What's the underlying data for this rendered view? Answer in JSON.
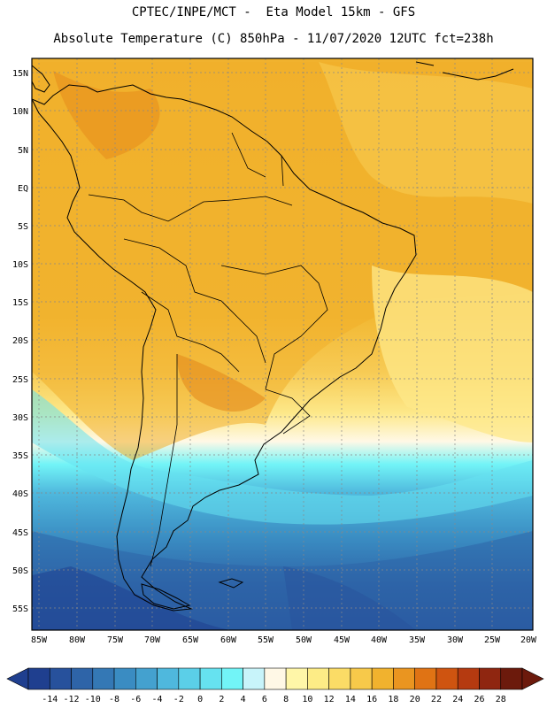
{
  "title_line1": "CPTEC/INPE/MCT -  Eta Model 15km - GFS",
  "title_line2": "Absolute Temperature (C) 850hPa - 11/07/2020 12UTC fct=238h",
  "lat_labels": [
    "15N",
    "10N",
    "5N",
    "EQ",
    "5S",
    "10S",
    "15S",
    "20S",
    "25S",
    "30S",
    "35S",
    "40S",
    "45S",
    "50S",
    "55S"
  ],
  "lon_labels": [
    "85W",
    "80W",
    "75W",
    "70W",
    "65W",
    "60W",
    "55W",
    "50W",
    "45W",
    "40W",
    "35W",
    "30W",
    "25W",
    "20W"
  ],
  "colorbar": {
    "labels": [
      "-14",
      "-12",
      "-10",
      "-8",
      "-6",
      "-4",
      "-2",
      "0",
      "2",
      "4",
      "6",
      "8",
      "10",
      "12",
      "14",
      "16",
      "18",
      "20",
      "22",
      "24",
      "26",
      "28"
    ],
    "colors": [
      "#1f3f8f",
      "#27519c",
      "#2e64a8",
      "#3478b5",
      "#3a8cc2",
      "#44a1cf",
      "#4fb8dd",
      "#5bcfe8",
      "#66e2f0",
      "#72f4f7",
      "#c8f4fa",
      "#fff8e6",
      "#fff6a8",
      "#fdec86",
      "#fbdc66",
      "#f7c94a",
      "#f1b22e",
      "#ea9520",
      "#e07314",
      "#cf5410",
      "#b53a10",
      "#8f2610",
      "#6c1a0c"
    ]
  }
}
